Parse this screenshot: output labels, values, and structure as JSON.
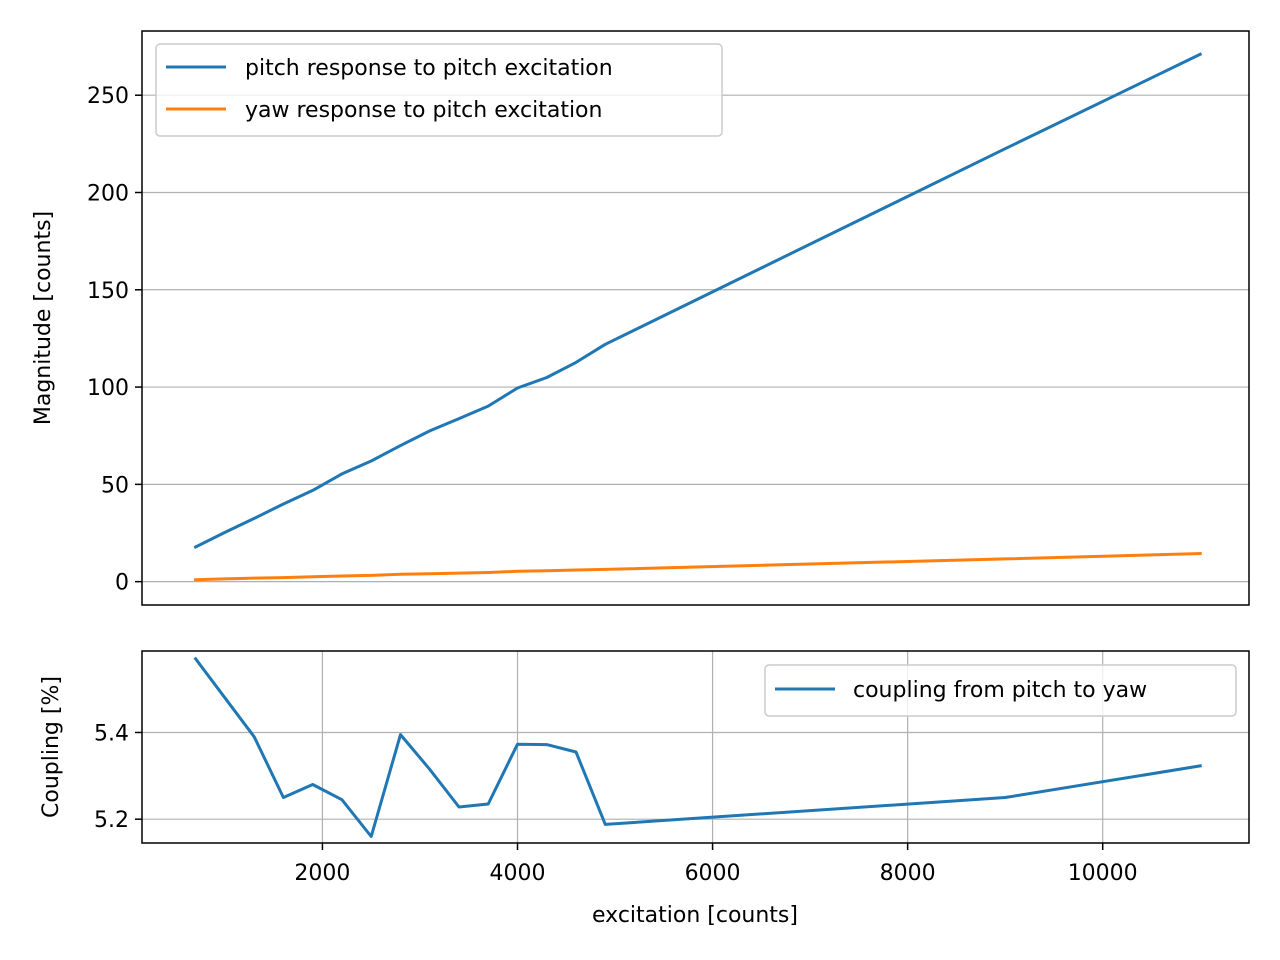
{
  "chart_data": [
    {
      "type": "line",
      "title": "",
      "xlabel": "",
      "ylabel": "Magnitude [counts]",
      "xlim": [
        150,
        11500
      ],
      "ylim": [
        -12,
        283
      ],
      "yticks": [
        0,
        50,
        100,
        150,
        200,
        250
      ],
      "ytick_labels": [
        "0",
        "50",
        "100",
        "150",
        "200",
        "250"
      ],
      "xticks_visible": false,
      "grid": "y",
      "legend_position": "upper left",
      "x": [
        700,
        1000,
        1300,
        1600,
        1900,
        2200,
        2500,
        2800,
        3100,
        3400,
        3700,
        4000,
        4300,
        4600,
        4900,
        9000,
        11000
      ],
      "series": [
        {
          "name": "pitch response to pitch excitation",
          "color": "#1f77b4",
          "values": [
            17.8,
            25.3,
            32.5,
            39.9,
            46.9,
            55.4,
            62.0,
            69.9,
            77.5,
            83.8,
            90.2,
            99.5,
            104.9,
            112.7,
            122.0,
            222.5,
            271.0
          ]
        },
        {
          "name": "yaw response to pitch excitation",
          "color": "#ff7f0e",
          "values": [
            1.0,
            1.4,
            1.8,
            2.1,
            2.5,
            2.9,
            3.2,
            3.8,
            4.1,
            4.4,
            4.7,
            5.3,
            5.6,
            6.0,
            6.3,
            11.7,
            14.4
          ]
        }
      ]
    },
    {
      "type": "line",
      "title": "",
      "xlabel": "excitation [counts]",
      "ylabel": "Coupling [%]",
      "xlim": [
        150,
        11500
      ],
      "ylim": [
        5.145,
        5.588
      ],
      "xticks": [
        2000,
        4000,
        6000,
        8000,
        10000
      ],
      "xtick_labels": [
        "2000",
        "4000",
        "6000",
        "8000",
        "10000"
      ],
      "yticks": [
        5.2,
        5.4
      ],
      "ytick_labels": [
        "5.2",
        "5.4"
      ],
      "grid": "both",
      "legend_position": "upper right",
      "x": [
        700,
        1000,
        1300,
        1600,
        1900,
        2200,
        2500,
        2800,
        3100,
        3400,
        3700,
        4000,
        4300,
        4600,
        4900,
        9000,
        11000
      ],
      "series": [
        {
          "name": "coupling from pitch to yaw",
          "color": "#1f77b4",
          "values": [
            5.57,
            5.48,
            5.39,
            5.25,
            5.28,
            5.245,
            5.16,
            5.395,
            5.315,
            5.228,
            5.235,
            5.373,
            5.372,
            5.355,
            5.188,
            5.25,
            5.323
          ]
        }
      ]
    }
  ]
}
